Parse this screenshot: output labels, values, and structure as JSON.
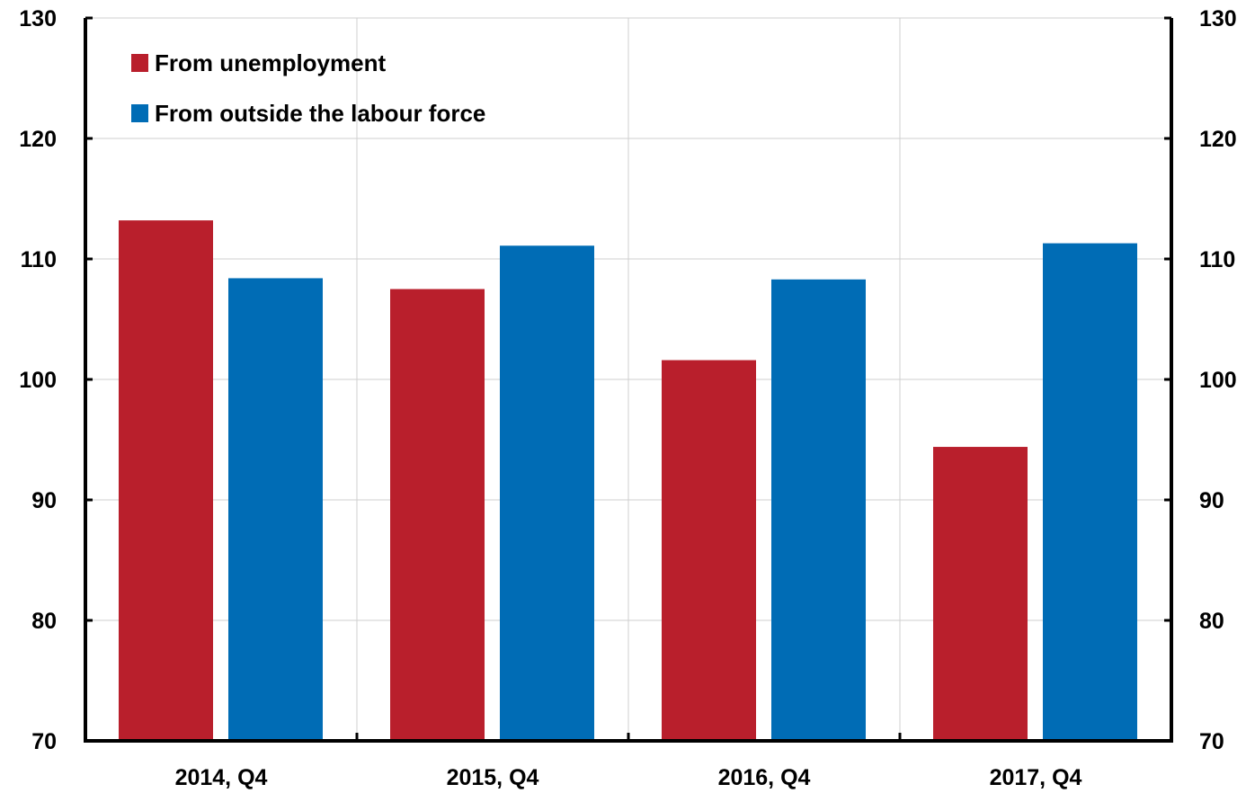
{
  "chart_data": {
    "type": "bar",
    "categories": [
      "2014, Q4",
      "2015, Q4",
      "2016, Q4",
      "2017, Q4"
    ],
    "series": [
      {
        "name": "From unemployment",
        "color": "#b91f2c",
        "values": [
          113.2,
          107.5,
          101.6,
          94.4
        ]
      },
      {
        "name": "From outside the labour force",
        "color": "#006cb5",
        "values": [
          108.4,
          111.1,
          108.3,
          111.3
        ]
      }
    ],
    "title": "",
    "xlabel": "",
    "ylabel": "",
    "ylim": [
      70,
      130
    ],
    "yticks": [
      "70",
      "80",
      "90",
      "100",
      "110",
      "120",
      "130"
    ],
    "grid": true,
    "legend_position": "top-left",
    "secondary_axis": "right"
  }
}
